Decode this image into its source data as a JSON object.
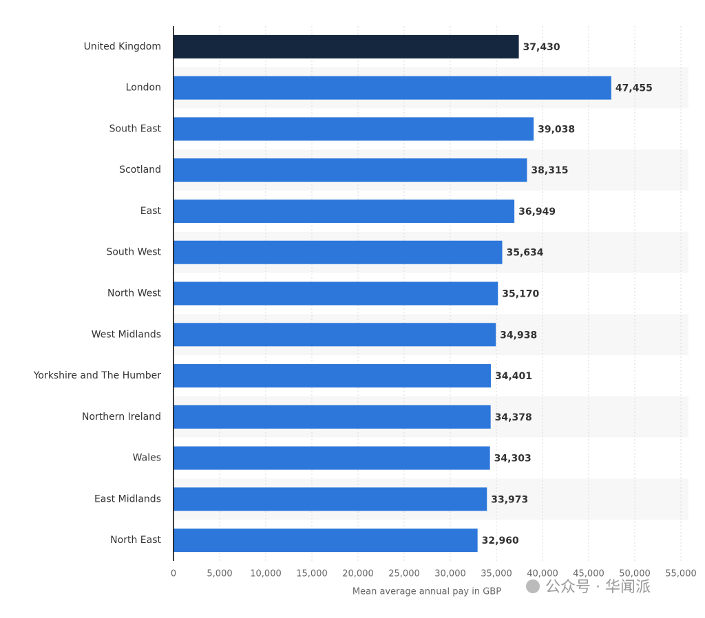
{
  "chart_data": {
    "type": "bar",
    "orientation": "horizontal",
    "categories": [
      "United Kingdom",
      "London",
      "South East",
      "Scotland",
      "East",
      "South West",
      "North West",
      "West Midlands",
      "Yorkshire and The Humber",
      "Northern Ireland",
      "Wales",
      "East Midlands",
      "North East"
    ],
    "values": [
      37430,
      47455,
      39038,
      38315,
      36949,
      35634,
      35170,
      34938,
      34401,
      34378,
      34303,
      33973,
      32960
    ],
    "value_labels": [
      "37,430",
      "47,455",
      "39,038",
      "38,315",
      "36,949",
      "35,634",
      "35,170",
      "34,938",
      "34,401",
      "34,378",
      "34,303",
      "33,973",
      "32,960"
    ],
    "colors": [
      "#14273f",
      "#2d77db",
      "#2d77db",
      "#2d77db",
      "#2d77db",
      "#2d77db",
      "#2d77db",
      "#2d77db",
      "#2d77db",
      "#2d77db",
      "#2d77db",
      "#2d77db",
      "#2d77db"
    ],
    "xlabel": "Mean average annual pay in GBP",
    "xlim": [
      0,
      55000
    ],
    "xticks": [
      0,
      {
        "value": 5000,
        "label": "5,000"
      },
      {
        "value": 10000,
        "label": "10,000"
      },
      {
        "value": 15000,
        "label": "15,000"
      },
      {
        "value": 20000,
        "label": "20,000"
      },
      {
        "value": 25000,
        "label": "25,000"
      },
      {
        "value": 30000,
        "label": "30,000"
      },
      {
        "value": 35000,
        "label": "35,000"
      },
      {
        "value": 40000,
        "label": "40,000"
      },
      {
        "value": 45000,
        "label": "45,000"
      },
      {
        "value": 50000,
        "label": "50,000"
      },
      {
        "value": 55000,
        "label": "55,000"
      }
    ],
    "grid": true
  },
  "watermark": "公众号 · 华闻派"
}
